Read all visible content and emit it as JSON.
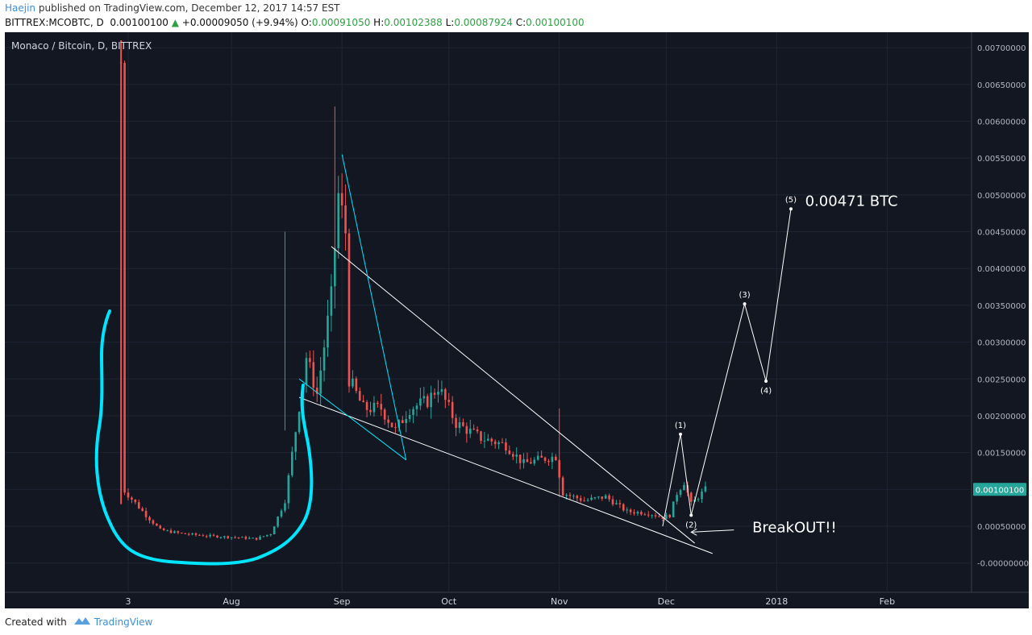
{
  "header": {
    "author": "Haejin",
    "published_text": "published on TradingView.com, December 12, 2017 14:57 EST"
  },
  "ohlc": {
    "symbol": "BITTREX:MCOBTC, D",
    "last": "0.00100100",
    "change": "+0.00009050 (+9.94%)",
    "o_label": "O:",
    "o": "0.00091050",
    "h_label": "H:",
    "h": "0.00102388",
    "l_label": "L:",
    "l": "0.00087924",
    "c_label": "C:",
    "c": "0.00100100",
    "up_color": "#2ea043"
  },
  "footer": {
    "created_with": "Created with",
    "brand": "TradingView",
    "logo_icon": "tradingview-logo-icon"
  },
  "chart_data": {
    "type": "candlestick",
    "title": "Monaco / Bitcoin, D, BITTREX",
    "background": "#131722",
    "up_color": "#26a69a",
    "down_color": "#ef5350",
    "wedge_color": "#ffffff",
    "marker_color": "#00e5ff",
    "ylim": [
      -0.0002,
      0.0071
    ],
    "y_ticks": [
      "0.00700000",
      "0.00650000",
      "0.00600000",
      "0.00550000",
      "0.00500000",
      "0.00450000",
      "0.00400000",
      "0.00350000",
      "0.00300000",
      "0.00250000",
      "0.00200000",
      "0.00150000",
      "0.00100000",
      "0.00050000",
      "-0.00000000"
    ],
    "y_tick_values": [
      0.007,
      0.0065,
      0.006,
      0.0055,
      0.005,
      0.0045,
      0.004,
      0.0035,
      0.003,
      0.0025,
      0.002,
      0.0015,
      0.001,
      0.0005,
      0
    ],
    "price_label": {
      "text": "0.00100100",
      "value": 0.001001,
      "color": "#26a69a"
    },
    "x_ticks": [
      {
        "label": "3",
        "date": "2017-07-03"
      },
      {
        "label": "Aug",
        "date": "2017-08-01"
      },
      {
        "label": "Sep",
        "date": "2017-09-01"
      },
      {
        "label": "Oct",
        "date": "2017-10-01"
      },
      {
        "label": "Nov",
        "date": "2017-11-01"
      },
      {
        "label": "Dec",
        "date": "2017-12-01"
      },
      {
        "label": "2018",
        "date": "2018-01-01"
      },
      {
        "label": "Feb",
        "date": "2018-02-01"
      }
    ],
    "candle_anchors": [
      {
        "date": "2017-07-01",
        "price": 0.0068
      },
      {
        "date": "2017-07-02",
        "price": 0.00098
      },
      {
        "date": "2017-07-08",
        "price": 0.00065
      },
      {
        "date": "2017-07-12",
        "price": 0.00045
      },
      {
        "date": "2017-07-18",
        "price": 0.0004
      },
      {
        "date": "2017-07-25",
        "price": 0.00037
      },
      {
        "date": "2017-08-02",
        "price": 0.00035
      },
      {
        "date": "2017-08-08",
        "price": 0.00033
      },
      {
        "date": "2017-08-12",
        "price": 0.0004
      },
      {
        "date": "2017-08-16",
        "price": 0.00085
      },
      {
        "date": "2017-08-19",
        "price": 0.0018
      },
      {
        "date": "2017-08-22",
        "price": 0.0028
      },
      {
        "date": "2017-08-25",
        "price": 0.0023
      },
      {
        "date": "2017-08-29",
        "price": 0.0036
      },
      {
        "date": "2017-08-31",
        "price": 0.005
      },
      {
        "date": "2017-09-02",
        "price": 0.0045
      },
      {
        "date": "2017-09-03",
        "price": 0.0025
      },
      {
        "date": "2017-09-07",
        "price": 0.0021
      },
      {
        "date": "2017-09-12",
        "price": 0.0021
      },
      {
        "date": "2017-09-16",
        "price": 0.0018
      },
      {
        "date": "2017-09-20",
        "price": 0.0021
      },
      {
        "date": "2017-09-25",
        "price": 0.0022
      },
      {
        "date": "2017-09-28",
        "price": 0.0024
      },
      {
        "date": "2017-10-03",
        "price": 0.0019
      },
      {
        "date": "2017-10-10",
        "price": 0.0017
      },
      {
        "date": "2017-10-17",
        "price": 0.0016
      },
      {
        "date": "2017-10-22",
        "price": 0.00135
      },
      {
        "date": "2017-10-26",
        "price": 0.0014
      },
      {
        "date": "2017-10-31",
        "price": 0.00145
      },
      {
        "date": "2017-11-02",
        "price": 0.00095
      },
      {
        "date": "2017-11-08",
        "price": 0.00085
      },
      {
        "date": "2017-11-14",
        "price": 0.0009
      },
      {
        "date": "2017-11-20",
        "price": 0.0007
      },
      {
        "date": "2017-11-26",
        "price": 0.00068
      },
      {
        "date": "2017-11-30",
        "price": 0.00062
      },
      {
        "date": "2017-12-02",
        "price": 0.00065
      },
      {
        "date": "2017-12-04",
        "price": 0.00095
      },
      {
        "date": "2017-12-06",
        "price": 0.0011
      },
      {
        "date": "2017-12-08",
        "price": 0.0008
      },
      {
        "date": "2017-12-10",
        "price": 0.0009
      },
      {
        "date": "2017-12-12",
        "price": 0.001
      }
    ],
    "trend_lines": [
      {
        "name": "wedge-upper-line",
        "from": {
          "date": "2017-08-29",
          "price": 0.0043
        },
        "to": {
          "date": "2017-12-09",
          "price": 0.00027
        }
      },
      {
        "name": "wedge-lower-line",
        "from": {
          "date": "2017-08-20",
          "price": 0.00225
        },
        "to": {
          "date": "2017-12-14",
          "price": 0.00013
        }
      },
      {
        "name": "flag-line-1",
        "from": {
          "date": "2017-09-01",
          "price": 0.00555
        },
        "to": {
          "date": "2017-09-19",
          "price": 0.0014
        }
      },
      {
        "name": "flag-line-2",
        "from": {
          "date": "2017-09-19",
          "price": 0.0014
        },
        "to": {
          "date": "2017-08-20",
          "price": 0.0025
        }
      }
    ],
    "elliott_wave": [
      {
        "label": "(1)",
        "date": "2017-12-05",
        "price": 0.00175
      },
      {
        "label": "(2)",
        "date": "2017-12-08",
        "price": 0.00065
      },
      {
        "label": "(3)",
        "date": "2017-12-23",
        "price": 0.00352
      },
      {
        "label": "(4)",
        "date": "2017-12-29",
        "price": 0.00247
      },
      {
        "label": "(5)",
        "date": "2018-01-05",
        "price": 0.00481
      }
    ],
    "wave_start": {
      "date": "2017-11-30",
      "price": 0.0005
    },
    "annotations": [
      {
        "name": "target-annotation",
        "text": "0.00471 BTC",
        "date": "2018-01-22",
        "price": 0.00485
      },
      {
        "name": "breakout-annotation",
        "text": "BreakOUT!!",
        "date": "2018-01-06",
        "price": 0.00042
      }
    ],
    "breakout_arrow": {
      "from": {
        "date": "2017-12-20",
        "price": 0.00045
      },
      "to": {
        "date": "2017-12-08",
        "price": 0.00042
      }
    }
  }
}
